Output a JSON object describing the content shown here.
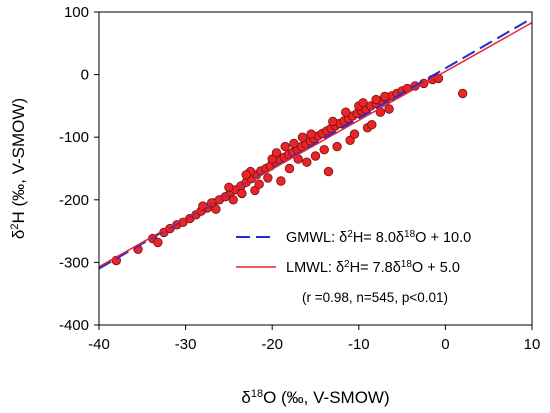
{
  "chart_data": {
    "type": "scatter",
    "xlabel": {
      "base": "δ",
      "sup": "18",
      "rest": "O (‰, V-SMOW)"
    },
    "ylabel": {
      "base": "δ",
      "sup": "2",
      "rest": "H (‰, V-SMOW)"
    },
    "xlim": [
      -40,
      10
    ],
    "ylim": [
      -400,
      100
    ],
    "xticks": [
      -40,
      -30,
      -20,
      -10,
      0,
      10
    ],
    "yticks": [
      -400,
      -300,
      -200,
      -100,
      0,
      100
    ],
    "grid": false,
    "colors": {
      "points_fill": "#e8262a",
      "points_stroke": "#7a0d0d",
      "gmwl": "#1f2fd6",
      "lmwl": "#e8262a"
    },
    "lines": [
      {
        "id": "gmwl",
        "name": "GMWL",
        "slope": 8.0,
        "intercept": 10.0,
        "style": "dashed",
        "label": {
          "lead": "GMWL: δ",
          "s1": "2",
          "mid": "H= 8.0δ",
          "s2": "18",
          "tail": "O + 10.0"
        }
      },
      {
        "id": "lmwl",
        "name": "LMWL",
        "slope": 7.8,
        "intercept": 5.0,
        "style": "solid",
        "label": {
          "lead": "LMWL: δ",
          "s1": "2",
          "mid": "H= 7.8δ",
          "s2": "18",
          "tail": "O + 5.0"
        }
      }
    ],
    "stats_text": "(r =0.98, n=545, p<0.01)",
    "legend_position": "lower-right",
    "scatter": {
      "count": 545,
      "points": [
        [
          -38.0,
          -297
        ],
        [
          -35.5,
          -279
        ],
        [
          -33.8,
          -262
        ],
        [
          -33.2,
          -268
        ],
        [
          -32.5,
          -252
        ],
        [
          -31.8,
          -246
        ],
        [
          -31.0,
          -240
        ],
        [
          -30.3,
          -236
        ],
        [
          -29.5,
          -230
        ],
        [
          -28.8,
          -224
        ],
        [
          -28.2,
          -218
        ],
        [
          -27.5,
          -213
        ],
        [
          -26.8,
          -205
        ],
        [
          -26.1,
          -200
        ],
        [
          -25.4,
          -195
        ],
        [
          -24.8,
          -188
        ],
        [
          -24.2,
          -184
        ],
        [
          -23.6,
          -178
        ],
        [
          -23.0,
          -172
        ],
        [
          -22.4,
          -166
        ],
        [
          -21.8,
          -160
        ],
        [
          -21.3,
          -154
        ],
        [
          -20.7,
          -150
        ],
        [
          -20.2,
          -146
        ],
        [
          -19.6,
          -140
        ],
        [
          -19.1,
          -136
        ],
        [
          -18.6,
          -132
        ],
        [
          -18.1,
          -128
        ],
        [
          -17.6,
          -124
        ],
        [
          -17.1,
          -120
        ],
        [
          -16.6,
          -115
        ],
        [
          -16.1,
          -111
        ],
        [
          -15.6,
          -106
        ],
        [
          -15.2,
          -102
        ],
        [
          -14.7,
          -98
        ],
        [
          -14.2,
          -94
        ],
        [
          -13.7,
          -90
        ],
        [
          -13.2,
          -86
        ],
        [
          -12.7,
          -82
        ],
        [
          -12.2,
          -78
        ],
        [
          -11.7,
          -74
        ],
        [
          -11.2,
          -70
        ],
        [
          -10.7,
          -66
        ],
        [
          -10.2,
          -62
        ],
        [
          -9.7,
          -58
        ],
        [
          -9.2,
          -55
        ],
        [
          -8.6,
          -50
        ],
        [
          -8.0,
          -46
        ],
        [
          -7.4,
          -42
        ],
        [
          -6.8,
          -38
        ],
        [
          -6.2,
          -34
        ],
        [
          -5.6,
          -30
        ],
        [
          -5.0,
          -26
        ],
        [
          -4.4,
          -22
        ],
        [
          -3.5,
          -18
        ],
        [
          -2.5,
          -14
        ],
        [
          -1.5,
          -8
        ],
        [
          -0.8,
          -6
        ],
        [
          2.0,
          -30
        ],
        [
          -13.5,
          -155
        ],
        [
          -9.0,
          -85
        ],
        [
          -16.0,
          -140
        ],
        [
          -11.0,
          -105
        ],
        [
          -19.0,
          -170
        ],
        [
          -22.0,
          -185
        ],
        [
          -24.5,
          -200
        ],
        [
          -15.0,
          -130
        ],
        [
          -12.5,
          -115
        ],
        [
          -10.5,
          -95
        ],
        [
          -8.5,
          -80
        ],
        [
          -7.5,
          -60
        ],
        [
          -6.5,
          -55
        ],
        [
          -18.0,
          -150
        ],
        [
          -17.0,
          -135
        ],
        [
          -14.0,
          -120
        ],
        [
          -20.5,
          -165
        ],
        [
          -21.5,
          -175
        ],
        [
          -23.5,
          -190
        ],
        [
          -26.5,
          -215
        ],
        [
          -27.0,
          -205
        ],
        [
          -16.5,
          -100
        ],
        [
          -15.5,
          -95
        ],
        [
          -13.0,
          -75
        ],
        [
          -11.5,
          -60
        ],
        [
          -10.0,
          -50
        ],
        [
          -9.5,
          -45
        ],
        [
          -8.0,
          -40
        ],
        [
          -7.0,
          -35
        ],
        [
          -20.0,
          -135
        ],
        [
          -19.5,
          -125
        ],
        [
          -18.5,
          -115
        ],
        [
          -17.5,
          -110
        ],
        [
          -22.5,
          -155
        ],
        [
          -23.0,
          -160
        ],
        [
          -25.0,
          -180
        ],
        [
          -28.0,
          -210
        ]
      ]
    }
  }
}
